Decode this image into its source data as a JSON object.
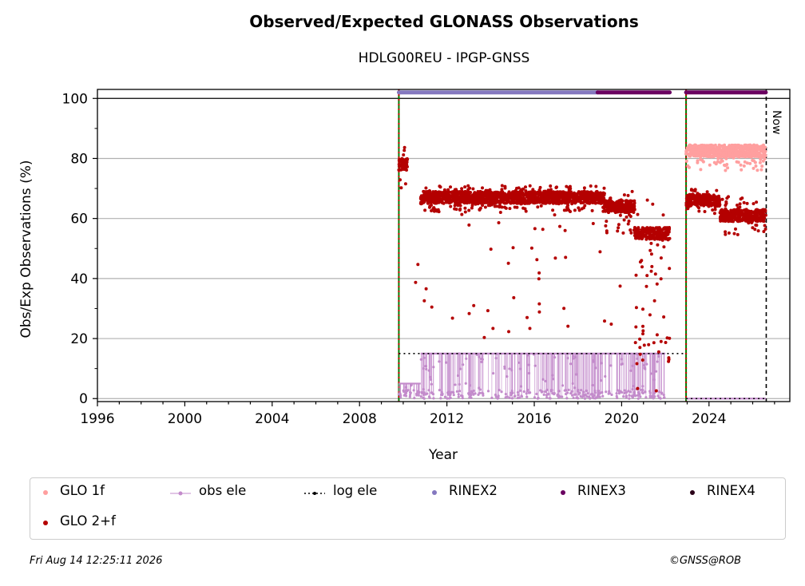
{
  "chart_data": {
    "type": "scatter",
    "title": "Observed/Expected GLONASS Observations",
    "subtitle": "HDLG00REU - IPGP-GNSS",
    "xlabel": "Year",
    "ylabel": "Obs/Exp Observations (%)",
    "xlim": [
      1996,
      2027.7
    ],
    "ylim": [
      -1,
      103
    ],
    "x_ticks": [
      1996,
      2000,
      2004,
      2008,
      2012,
      2016,
      2020,
      2024
    ],
    "y_ticks": [
      0,
      20,
      40,
      60,
      80,
      100
    ],
    "grid": "horizontal",
    "now_label": "Now",
    "now_x": 2026.62,
    "equipment_change_lines": [
      2009.8,
      2022.95
    ],
    "series": [
      {
        "name": "GLO 1f",
        "color": "#ff9f9f",
        "segments": [
          {
            "x0": 2022.95,
            "x1": 2026.6,
            "y_lo": 76,
            "y_hi": 84,
            "typ": 82.5
          }
        ]
      },
      {
        "name": "GLO 2+f",
        "color": "#b40000",
        "segments": [
          {
            "x0": 2009.8,
            "x1": 2010.2,
            "y_lo": 70,
            "y_hi": 85,
            "typ": 78
          },
          {
            "x0": 2010.8,
            "x1": 2019.2,
            "y_lo": 62,
            "y_hi": 71,
            "typ": 67
          },
          {
            "x0": 2019.2,
            "x1": 2020.6,
            "y_lo": 55,
            "y_hi": 69,
            "typ": 64
          },
          {
            "x0": 2020.6,
            "x1": 2022.2,
            "y_lo": 1,
            "y_hi": 68,
            "typ": 55
          },
          {
            "x0": 2022.95,
            "x1": 2024.5,
            "y_lo": 61,
            "y_hi": 70,
            "typ": 66
          },
          {
            "x0": 2024.5,
            "x1": 2026.6,
            "y_lo": 54,
            "y_hi": 68,
            "typ": 61
          }
        ]
      },
      {
        "name": "obs ele",
        "color": "#c38bcb",
        "segments": [
          {
            "x0": 2009.8,
            "x1": 2010.8,
            "y": 5
          },
          {
            "x0": 2010.8,
            "x1": 2022.0,
            "y": 15
          },
          {
            "x0": 2022.95,
            "x1": 2026.6,
            "y": 0
          }
        ]
      },
      {
        "name": "log ele",
        "color": "#000000",
        "segments": [
          {
            "x0": 2009.8,
            "x1": 2022.95,
            "y": 15
          },
          {
            "x0": 2022.95,
            "x1": 2026.6,
            "y": 0
          }
        ]
      },
      {
        "name": "RINEX2",
        "color": "#8478bf",
        "segments": [
          {
            "x0": 2009.8,
            "x1": 2018.9,
            "y": 102
          }
        ]
      },
      {
        "name": "RINEX3",
        "color": "#6a0060",
        "segments": [
          {
            "x0": 2018.9,
            "x1": 2022.2,
            "y": 102
          },
          {
            "x0": 2022.95,
            "x1": 2026.6,
            "y": 102
          }
        ]
      },
      {
        "name": "RINEX4",
        "color": "#2a0018",
        "segments": []
      }
    ]
  },
  "legend": {
    "glo1f": "GLO 1f",
    "glo2f": "GLO 2+f",
    "obs_ele": "obs ele",
    "log_ele": "log ele",
    "rinex2": "RINEX2",
    "rinex3": "RINEX3",
    "rinex4": "RINEX4"
  },
  "footer": {
    "timestamp": "Fri Aug 14 12:25:11 2026",
    "credit": "©GNSS@ROB"
  }
}
